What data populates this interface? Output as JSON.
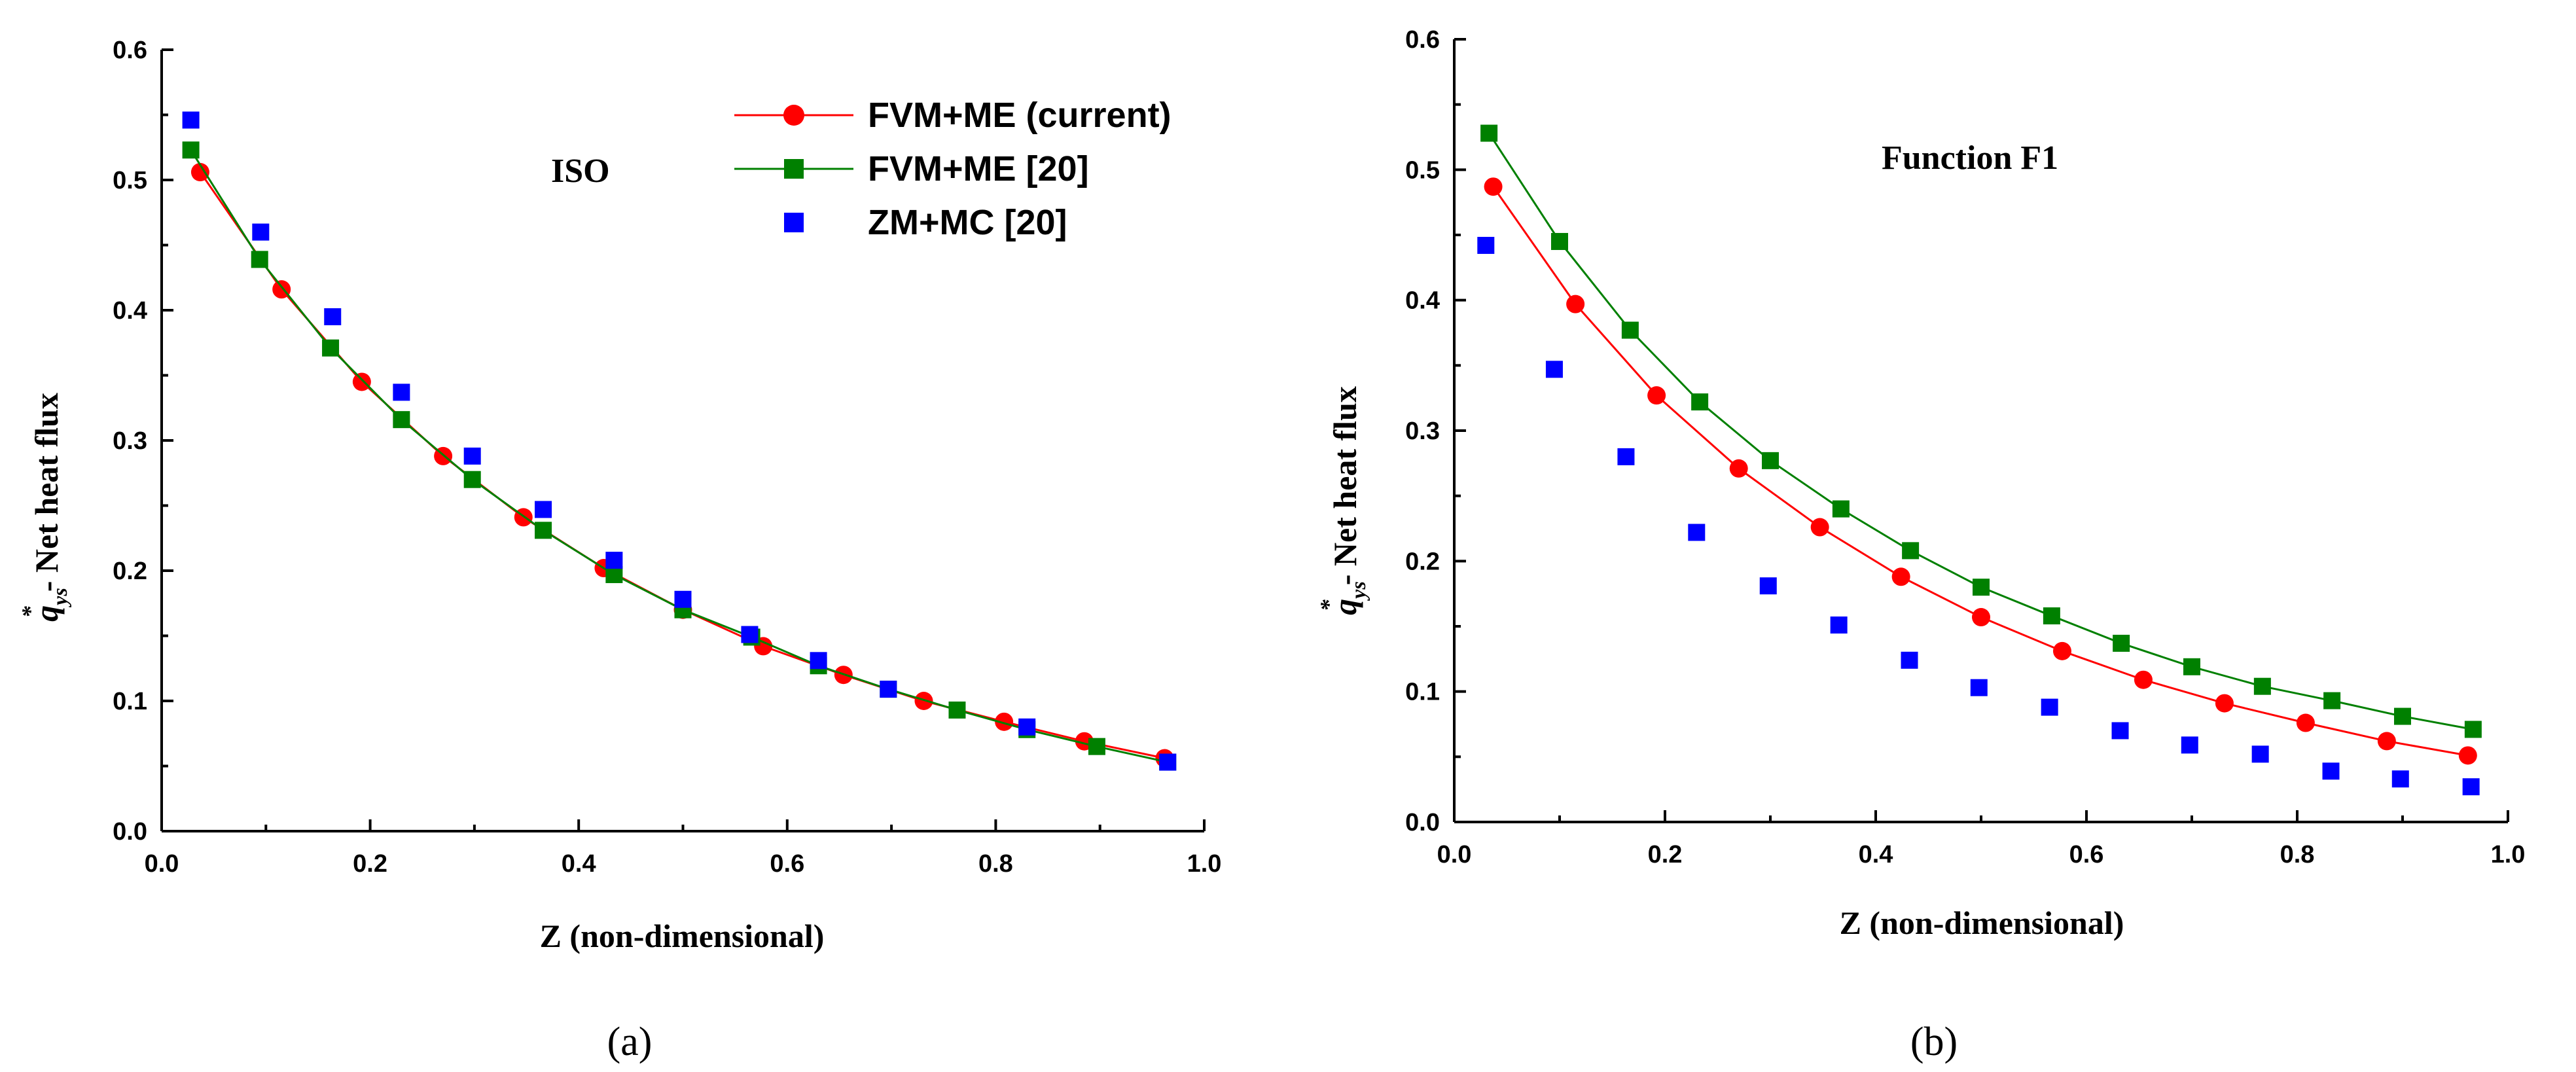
{
  "chart_data": [
    {
      "type": "line",
      "panel": "(a)",
      "annotation": "ISO",
      "xlabel": "Z (non-dimensional)",
      "ylabel": {
        "symbol": "q",
        "superscript": "*",
        "subscript": "ys",
        "text": "- Net heat flux"
      },
      "xlim": [
        0.0,
        1.0
      ],
      "ylim": [
        0.0,
        0.6
      ],
      "xticks": [
        "0.0",
        "0.2",
        "0.4",
        "0.6",
        "0.8",
        "1.0"
      ],
      "yticks": [
        "0.0",
        "0.1",
        "0.2",
        "0.3",
        "0.4",
        "0.5",
        "0.6"
      ],
      "legend_position": "top-right",
      "series": [
        {
          "name": "FVM+ME (current)",
          "color": "#ff0000",
          "marker": "circle",
          "line": true,
          "x": [
            0.037,
            0.115,
            0.192,
            0.27,
            0.347,
            0.424,
            0.5,
            0.577,
            0.654,
            0.731,
            0.808,
            0.885,
            0.962
          ],
          "y": [
            0.506,
            0.416,
            0.345,
            0.288,
            0.241,
            0.202,
            0.17,
            0.142,
            0.12,
            0.1,
            0.084,
            0.069,
            0.056
          ]
        },
        {
          "name": "FVM+ME [20]",
          "color": "#008000",
          "marker": "square",
          "line": true,
          "x": [
            0.028,
            0.094,
            0.162,
            0.23,
            0.298,
            0.366,
            0.434,
            0.5,
            0.566,
            0.63,
            0.697,
            0.763,
            0.83,
            0.897,
            0.965
          ],
          "y": [
            0.523,
            0.439,
            0.371,
            0.316,
            0.27,
            0.231,
            0.197,
            0.17,
            0.149,
            0.127,
            0.109,
            0.093,
            0.078,
            0.065,
            0.053
          ]
        },
        {
          "name": "ZM+MC [20]",
          "color": "#0000ff",
          "marker": "square",
          "line": false,
          "x": [
            0.028,
            0.095,
            0.164,
            0.23,
            0.298,
            0.366,
            0.434,
            0.5,
            0.564,
            0.63,
            0.697,
            0.83,
            0.965
          ],
          "y": [
            0.546,
            0.46,
            0.395,
            0.337,
            0.288,
            0.247,
            0.208,
            0.178,
            0.151,
            0.131,
            0.109,
            0.08,
            0.053
          ]
        }
      ]
    },
    {
      "type": "line",
      "panel": "(b)",
      "annotation": "Function F1",
      "xlabel": "Z (non-dimensional)",
      "ylabel": {
        "symbol": "q",
        "superscript": "*",
        "subscript": "ys",
        "text": "- Net heat flux"
      },
      "xlim": [
        0.0,
        1.0
      ],
      "ylim": [
        0.0,
        0.6
      ],
      "xticks": [
        "0.0",
        "0.2",
        "0.4",
        "0.6",
        "0.8",
        "1.0"
      ],
      "yticks": [
        "0.0",
        "0.1",
        "0.2",
        "0.3",
        "0.4",
        "0.5",
        "0.6"
      ],
      "series": [
        {
          "name": "FVM+ME (current)",
          "color": "#ff0000",
          "marker": "circle",
          "line": true,
          "x": [
            0.037,
            0.115,
            0.192,
            0.27,
            0.347,
            0.424,
            0.5,
            0.577,
            0.654,
            0.731,
            0.808,
            0.885,
            0.962
          ],
          "y": [
            0.487,
            0.397,
            0.327,
            0.271,
            0.226,
            0.188,
            0.157,
            0.131,
            0.109,
            0.091,
            0.076,
            0.062,
            0.051
          ]
        },
        {
          "name": "FVM+ME [20]",
          "color": "#008000",
          "marker": "square",
          "line": true,
          "x": [
            0.033,
            0.1,
            0.167,
            0.233,
            0.3,
            0.367,
            0.433,
            0.5,
            0.567,
            0.633,
            0.7,
            0.767,
            0.833,
            0.9,
            0.967
          ],
          "y": [
            0.528,
            0.445,
            0.377,
            0.322,
            0.277,
            0.24,
            0.208,
            0.18,
            0.158,
            0.137,
            0.119,
            0.104,
            0.093,
            0.081,
            0.071
          ]
        },
        {
          "name": "ZM+MC [20]",
          "color": "#0000ff",
          "marker": "square",
          "line": false,
          "x": [
            0.03,
            0.095,
            0.163,
            0.23,
            0.298,
            0.365,
            0.432,
            0.498,
            0.565,
            0.632,
            0.698,
            0.765,
            0.832,
            0.898,
            0.965
          ],
          "y": [
            0.442,
            0.347,
            0.28,
            0.222,
            0.181,
            0.151,
            0.124,
            0.103,
            0.088,
            0.07,
            0.059,
            0.052,
            0.039,
            0.033,
            0.027
          ]
        }
      ]
    }
  ]
}
